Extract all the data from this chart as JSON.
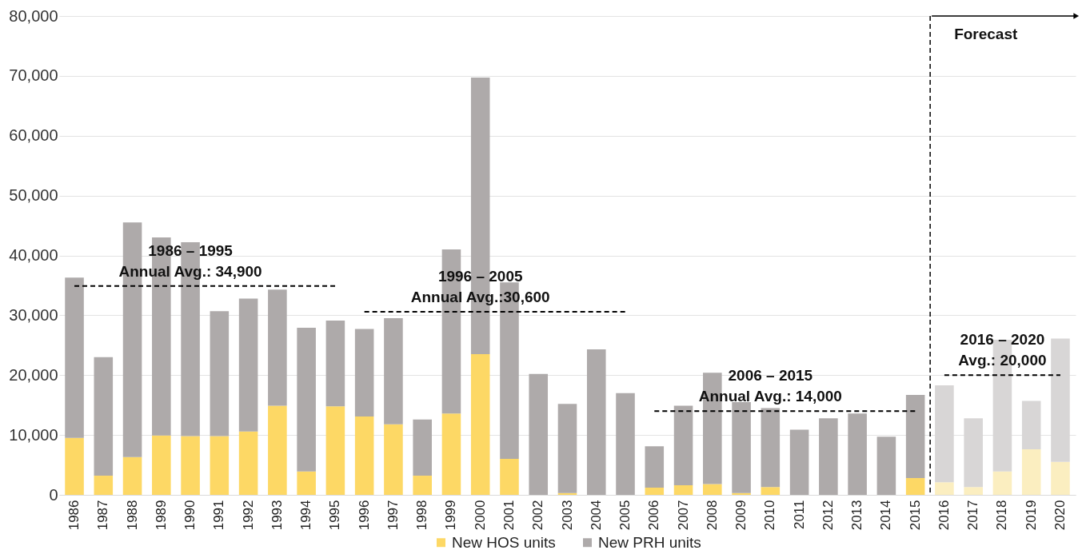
{
  "chart_data": {
    "type": "bar",
    "stacked": true,
    "grid": "y",
    "legend": "bottom",
    "categories": [
      "1986",
      "1987",
      "1988",
      "1989",
      "1990",
      "1991",
      "1992",
      "1993",
      "1994",
      "1995",
      "1996",
      "1997",
      "1998",
      "1999",
      "2000",
      "2001",
      "2002",
      "2003",
      "2004",
      "2005",
      "2006",
      "2007",
      "2008",
      "2009",
      "2010",
      "2011",
      "2012",
      "2013",
      "2014",
      "2015",
      "2016",
      "2017",
      "2018",
      "2019",
      "2020"
    ],
    "ylim": [
      0,
      80000
    ],
    "yticks": [
      {
        "value": 0,
        "label": "0"
      },
      {
        "value": 10000,
        "label": "10,000"
      },
      {
        "value": 20000,
        "label": "20,000"
      },
      {
        "value": 30000,
        "label": "30,000"
      },
      {
        "value": 40000,
        "label": "40,000"
      },
      {
        "value": 50000,
        "label": "50,000"
      },
      {
        "value": 60000,
        "label": "60,000"
      },
      {
        "value": 70000,
        "label": "70,000"
      },
      {
        "value": 80000,
        "label": "80,000"
      }
    ],
    "series": [
      {
        "name": "New HOS units",
        "color": "#fdd865",
        "colors": [
          "#fdd865",
          "#fdd865",
          "#fdd865",
          "#fdd865",
          "#fdd865",
          "#fdd865",
          "#fdd865",
          "#fdd865",
          "#fdd865",
          "#fdd865",
          "#fdd865",
          "#fdd865",
          "#fdd865",
          "#fdd865",
          "#fdd865",
          "#fdd865",
          "#fdd865",
          "#fdd865",
          "#fdd865",
          "#fdd865",
          "#fdd865",
          "#fdd865",
          "#fdd865",
          "#fdd865",
          "#fdd865",
          "#fdd865",
          "#fdd865",
          "#fdd865",
          "#fdd865",
          "#fdd865",
          "#fbeec0",
          "#fbeec0",
          "#fbeec0",
          "#fbeec0",
          "#fbeec0"
        ],
        "values": [
          9500,
          3200,
          6300,
          9900,
          9800,
          9800,
          10600,
          14900,
          3900,
          14800,
          13100,
          11800,
          3200,
          13600,
          23500,
          6000,
          0,
          300,
          0,
          0,
          1200,
          1600,
          1800,
          300,
          1300,
          0,
          0,
          0,
          0,
          2800,
          2100,
          1300,
          3900,
          7600,
          5500
        ]
      },
      {
        "name": "New PRH units",
        "color": "#aeaaaa",
        "colors": [
          "#aeaaaa",
          "#aeaaaa",
          "#aeaaaa",
          "#aeaaaa",
          "#aeaaaa",
          "#aeaaaa",
          "#aeaaaa",
          "#aeaaaa",
          "#aeaaaa",
          "#aeaaaa",
          "#aeaaaa",
          "#aeaaaa",
          "#aeaaaa",
          "#aeaaaa",
          "#aeaaaa",
          "#aeaaaa",
          "#aeaaaa",
          "#aeaaaa",
          "#aeaaaa",
          "#aeaaaa",
          "#aeaaaa",
          "#aeaaaa",
          "#aeaaaa",
          "#aeaaaa",
          "#aeaaaa",
          "#aeaaaa",
          "#aeaaaa",
          "#aeaaaa",
          "#aeaaaa",
          "#aeaaaa",
          "#d8d6d6",
          "#d8d6d6",
          "#d8d6d6",
          "#d8d6d6",
          "#d8d6d6"
        ],
        "values": [
          26800,
          19800,
          39200,
          33100,
          32400,
          20900,
          22200,
          19400,
          24000,
          14300,
          14600,
          17700,
          9400,
          27400,
          46200,
          29500,
          20200,
          14900,
          24300,
          17000,
          6900,
          13300,
          18600,
          15200,
          13200,
          10900,
          12800,
          13600,
          9700,
          13900,
          16200,
          11500,
          22000,
          8100,
          20600
        ]
      },
      {
        "type": "line",
        "color": "#000000",
        "line_style": "dashed",
        "values": [
          34900,
          34900,
          34900,
          34900,
          34900,
          34900,
          34900,
          34900,
          34900,
          34900,
          null,
          null,
          null,
          null,
          null,
          null,
          null,
          null,
          null,
          null,
          null,
          null,
          null,
          null,
          null,
          null,
          null,
          null,
          null,
          null,
          null,
          null,
          null,
          null,
          null
        ]
      },
      {
        "type": "line",
        "color": "#000000",
        "line_style": "dashed",
        "values": [
          null,
          null,
          null,
          null,
          null,
          null,
          null,
          null,
          null,
          null,
          30600,
          30600,
          30600,
          30600,
          30600,
          30600,
          30600,
          30600,
          30600,
          30600,
          null,
          null,
          null,
          null,
          null,
          null,
          null,
          null,
          null,
          null,
          null,
          null,
          null,
          null,
          null
        ]
      },
      {
        "type": "line",
        "color": "#000000",
        "line_style": "dashed",
        "values": [
          null,
          null,
          null,
          null,
          null,
          null,
          null,
          null,
          null,
          null,
          null,
          null,
          null,
          null,
          null,
          null,
          null,
          null,
          null,
          null,
          14000,
          14000,
          14000,
          14000,
          14000,
          14000,
          14000,
          14000,
          14000,
          14000,
          null,
          null,
          null,
          null,
          null
        ]
      },
      {
        "type": "line",
        "color": "#000000",
        "line_style": "dashed",
        "values": [
          null,
          null,
          null,
          null,
          null,
          null,
          null,
          null,
          null,
          null,
          null,
          null,
          null,
          null,
          null,
          null,
          null,
          null,
          null,
          null,
          null,
          null,
          null,
          null,
          null,
          null,
          null,
          null,
          null,
          null,
          20000,
          20000,
          20000,
          20000,
          20000
        ]
      }
    ],
    "ref_lines": [
      {
        "axis": "x",
        "value": "2016",
        "label": "Forecast",
        "line_style": "dashed",
        "color": "#000000"
      }
    ],
    "annotations": [
      {
        "text": "1986 – 1995\nAnnual Avg.: 34,900",
        "x": "1990",
        "y": 34900
      },
      {
        "text": "1996 – 2005\nAnnual Avg.:30,600",
        "x": "2000",
        "y": 30600
      },
      {
        "text": "2006 – 2015\nAnnual Avg.: 14,000",
        "x": "2010",
        "y": 14000
      },
      {
        "text": "2016 – 2020\nAvg.: 20,000",
        "x": "2018",
        "y": 20000
      }
    ]
  }
}
